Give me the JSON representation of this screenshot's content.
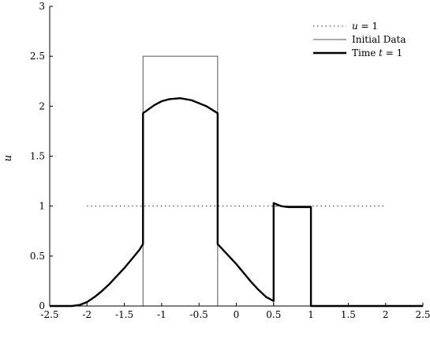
{
  "chart_data": {
    "type": "line",
    "title": "",
    "xlabel": "",
    "ylabel": "u",
    "xlim": [
      -2.5,
      2.5
    ],
    "ylim": [
      0,
      3
    ],
    "x_ticks": [
      -2.5,
      -2,
      -1.5,
      -1,
      -0.5,
      0,
      0.5,
      1,
      1.5,
      2,
      2.5
    ],
    "x_tick_labels": [
      "-2.5",
      "-2",
      "-1.5",
      "-1",
      "-0.5",
      "0",
      "0.5",
      "1",
      "1.5",
      "2",
      "2.5"
    ],
    "y_ticks": [
      0,
      0.5,
      1,
      1.5,
      2,
      2.5,
      3
    ],
    "y_tick_labels": [
      "0",
      "0.5",
      "1",
      "1.5",
      "2",
      "2.5",
      "3"
    ],
    "grid": false,
    "legend": {
      "position": "top-right",
      "entries": [
        {
          "label_pre": "",
          "label_var": "u",
          "label_post": " = 1",
          "style": "dotted"
        },
        {
          "label_pre": "Initial Data",
          "label_var": "",
          "label_post": "",
          "style": "thin"
        },
        {
          "label_pre": "Time ",
          "label_var": "t",
          "label_post": " = 1",
          "style": "thick"
        }
      ]
    },
    "series": [
      {
        "name": "u = 1",
        "style": "dotted",
        "x": [
          -2,
          2
        ],
        "y": [
          1,
          1
        ]
      },
      {
        "name": "Initial Data",
        "style": "thin",
        "x": [
          -2.5,
          -1.25,
          -1.25,
          -0.25,
          -0.25,
          0.5,
          0.5,
          1,
          1,
          2.5
        ],
        "y": [
          0,
          0,
          2.5,
          2.5,
          0,
          0,
          1,
          1,
          0,
          0
        ]
      },
      {
        "name": "Time t = 1",
        "style": "thick",
        "x": [
          -2.5,
          -2.2,
          -2.1,
          -2.0,
          -1.9,
          -1.8,
          -1.7,
          -1.6,
          -1.5,
          -1.4,
          -1.3,
          -1.25,
          -1.25,
          -1.1,
          -1.0,
          -0.9,
          -0.75,
          -0.6,
          -0.5,
          -0.4,
          -0.25,
          -0.25,
          -0.1,
          0.0,
          0.1,
          0.2,
          0.3,
          0.4,
          0.5,
          0.5,
          0.6,
          0.7,
          0.8,
          0.9,
          1.0,
          1.0,
          1.5,
          2.0,
          2.5
        ],
        "y": [
          0,
          0,
          0.01,
          0.04,
          0.09,
          0.15,
          0.22,
          0.3,
          0.38,
          0.47,
          0.56,
          0.62,
          1.93,
          2.01,
          2.05,
          2.07,
          2.08,
          2.06,
          2.03,
          2.0,
          1.93,
          0.62,
          0.5,
          0.42,
          0.33,
          0.24,
          0.16,
          0.09,
          0.05,
          1.03,
          1.0,
          0.99,
          0.99,
          0.99,
          0.99,
          0.0,
          0.0,
          0.0,
          0.0
        ]
      }
    ]
  }
}
